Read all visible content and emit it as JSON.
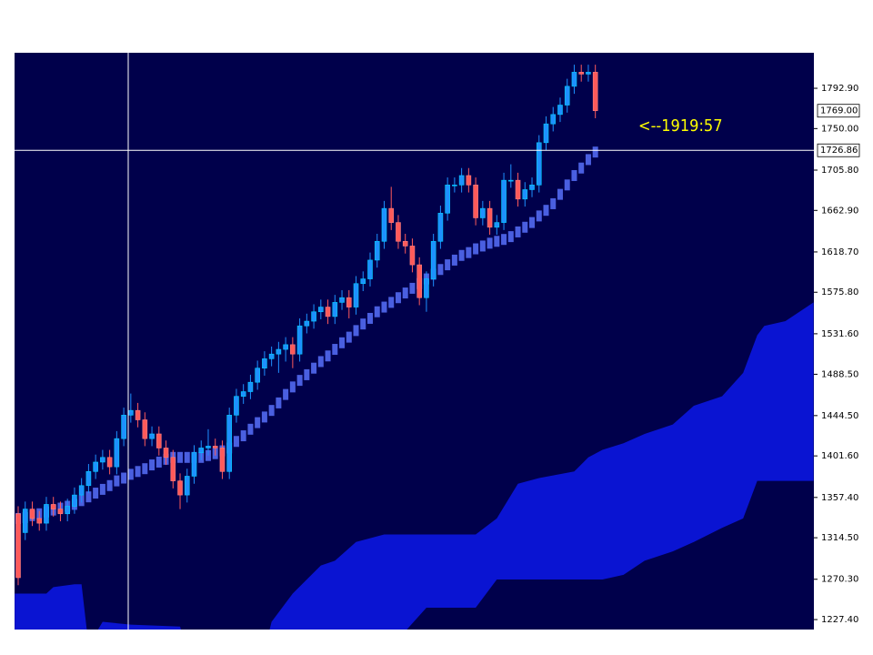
{
  "chart_data": {
    "type": "candlestick",
    "open": [
      1340,
      1320,
      1345,
      1335,
      1330,
      1350,
      1345,
      1340,
      1348,
      1360,
      1370,
      1385,
      1395,
      1400,
      1390,
      1420,
      1445,
      1450,
      1440,
      1420,
      1425,
      1410,
      1400,
      1375,
      1360,
      1380,
      1405,
      1410,
      1412,
      1410,
      1385,
      1445,
      1465,
      1470,
      1480,
      1495,
      1505,
      1510,
      1515,
      1520,
      1510,
      1540,
      1545,
      1555,
      1560,
      1550,
      1565,
      1570,
      1560,
      1585,
      1590,
      1610,
      1630,
      1665,
      1650,
      1630,
      1625,
      1605,
      1570,
      1590,
      1630,
      1660,
      1690,
      1690,
      1700,
      1690,
      1655,
      1665,
      1645,
      1650,
      1695,
      1695,
      1675,
      1685,
      1690,
      1735,
      1755,
      1765,
      1775,
      1795,
      1810,
      1808,
      1810
    ],
    "high": [
      1348,
      1353,
      1353,
      1343,
      1358,
      1358,
      1353,
      1356,
      1368,
      1378,
      1393,
      1403,
      1408,
      1408,
      1428,
      1453,
      1468,
      1458,
      1448,
      1433,
      1433,
      1418,
      1408,
      1383,
      1388,
      1413,
      1418,
      1430,
      1420,
      1418,
      1453,
      1473,
      1478,
      1488,
      1503,
      1513,
      1518,
      1523,
      1528,
      1528,
      1548,
      1553,
      1563,
      1568,
      1568,
      1573,
      1578,
      1578,
      1593,
      1598,
      1618,
      1638,
      1673,
      1688,
      1658,
      1638,
      1633,
      1613,
      1598,
      1638,
      1668,
      1698,
      1698,
      1708,
      1708,
      1698,
      1673,
      1673,
      1658,
      1703,
      1712,
      1703,
      1693,
      1698,
      1743,
      1763,
      1773,
      1783,
      1803,
      1818,
      1818,
      1818,
      1818
    ],
    "low": [
      1264,
      1312,
      1327,
      1322,
      1322,
      1337,
      1332,
      1332,
      1340,
      1352,
      1362,
      1377,
      1387,
      1382,
      1382,
      1412,
      1437,
      1432,
      1412,
      1412,
      1402,
      1392,
      1367,
      1345,
      1352,
      1372,
      1397,
      1402,
      1402,
      1377,
      1377,
      1437,
      1457,
      1462,
      1472,
      1487,
      1497,
      1490,
      1502,
      1495,
      1502,
      1532,
      1537,
      1547,
      1542,
      1542,
      1557,
      1548,
      1552,
      1577,
      1582,
      1602,
      1622,
      1642,
      1622,
      1617,
      1597,
      1562,
      1555,
      1582,
      1622,
      1652,
      1682,
      1682,
      1682,
      1647,
      1647,
      1637,
      1637,
      1642,
      1687,
      1667,
      1667,
      1677,
      1682,
      1727,
      1747,
      1757,
      1767,
      1787,
      1800,
      1800,
      1761
    ],
    "close": [
      1272,
      1345,
      1335,
      1330,
      1350,
      1345,
      1340,
      1348,
      1360,
      1370,
      1385,
      1395,
      1400,
      1390,
      1420,
      1445,
      1450,
      1440,
      1420,
      1425,
      1410,
      1400,
      1375,
      1360,
      1380,
      1405,
      1410,
      1412,
      1410,
      1385,
      1445,
      1465,
      1470,
      1480,
      1495,
      1505,
      1510,
      1515,
      1520,
      1510,
      1540,
      1545,
      1555,
      1560,
      1550,
      1565,
      1570,
      1560,
      1585,
      1590,
      1610,
      1630,
      1665,
      1650,
      1630,
      1625,
      1605,
      1570,
      1590,
      1630,
      1660,
      1690,
      1690,
      1700,
      1690,
      1655,
      1665,
      1645,
      1650,
      1695,
      1695,
      1675,
      1685,
      1690,
      1735,
      1755,
      1765,
      1775,
      1795,
      1810,
      1808,
      1810,
      1769
    ],
    "up_color": "#1e90ff",
    "down_color": "#ff5a5a",
    "base_line": {
      "color": "#4a5fe0",
      "values": [
        1335,
        1336,
        1338,
        1340,
        1342,
        1344,
        1346,
        1348,
        1350,
        1354,
        1358,
        1362,
        1366,
        1370,
        1375,
        1378,
        1382,
        1385,
        1388,
        1392,
        1395,
        1398,
        1400,
        1400,
        1400,
        1400,
        1400,
        1402,
        1404,
        1407,
        1410,
        1417,
        1423,
        1430,
        1437,
        1443,
        1450,
        1458,
        1467,
        1475,
        1482,
        1488,
        1495,
        1502,
        1508,
        1515,
        1522,
        1528,
        1535,
        1542,
        1548,
        1555,
        1560,
        1565,
        1570,
        1575,
        1580,
        1585,
        1590,
        1595,
        1600,
        1605,
        1610,
        1615,
        1618,
        1622,
        1625,
        1628,
        1630,
        1632,
        1635,
        1640,
        1645,
        1650,
        1657,
        1663,
        1670,
        1680,
        1690,
        1700,
        1708,
        1717,
        1725
      ]
    },
    "cloud": {
      "color": "#0a14d2",
      "x": [
        -0.5,
        4,
        5,
        8,
        9,
        10,
        12,
        16,
        23,
        24,
        35,
        36,
        39,
        43,
        45,
        48,
        52,
        58,
        65,
        68,
        71,
        74,
        79,
        81,
        83,
        86,
        89,
        93,
        96,
        100,
        103,
        105,
        106,
        109,
        113
      ],
      "upper": [
        1255,
        1255,
        1262,
        1265,
        1265,
        1200,
        1225,
        1222,
        1220,
        1195,
        1195,
        1225,
        1255,
        1285,
        1290,
        1310,
        1318,
        1318,
        1318,
        1335,
        1372,
        1378,
        1385,
        1400,
        1408,
        1415,
        1425,
        1435,
        1455,
        1465,
        1490,
        1530,
        1540,
        1545,
        1565
      ],
      "lower": [
        1190,
        1190,
        1190,
        1190,
        1190,
        1190,
        1190,
        1190,
        1190,
        1190,
        1190,
        1190,
        1190,
        1190,
        1190,
        1190,
        1190,
        1240,
        1240,
        1270,
        1270,
        1270,
        1270,
        1270,
        1270,
        1275,
        1290,
        1300,
        1310,
        1325,
        1335,
        1375,
        1375,
        1375,
        1375
      ]
    },
    "ylim": [
      1216.8,
      1830.7
    ],
    "yticks": [
      {
        "value": 1227.4,
        "label": "1227.40"
      },
      {
        "value": 1270.3,
        "label": "1270.30"
      },
      {
        "value": 1314.5,
        "label": "1314.50"
      },
      {
        "value": 1357.4,
        "label": "1357.40"
      },
      {
        "value": 1401.6,
        "label": "1401.60"
      },
      {
        "value": 1444.5,
        "label": "1444.50"
      },
      {
        "value": 1488.5,
        "label": "1488.50"
      },
      {
        "value": 1531.6,
        "label": "1531.60"
      },
      {
        "value": 1575.8,
        "label": "1575.80"
      },
      {
        "value": 1618.7,
        "label": "1618.70"
      },
      {
        "value": 1662.9,
        "label": "1662.90"
      },
      {
        "value": 1705.8,
        "label": "1705.80"
      },
      {
        "value": 1750,
        "label": "1750.00"
      },
      {
        "value": 1792.9,
        "label": "1792.90"
      }
    ],
    "last_price": {
      "value": 1769,
      "label": "1769.00"
    },
    "crosshair_price": {
      "value": 1726.86,
      "label": "1726.86"
    },
    "annotation": "<--1919:57"
  }
}
